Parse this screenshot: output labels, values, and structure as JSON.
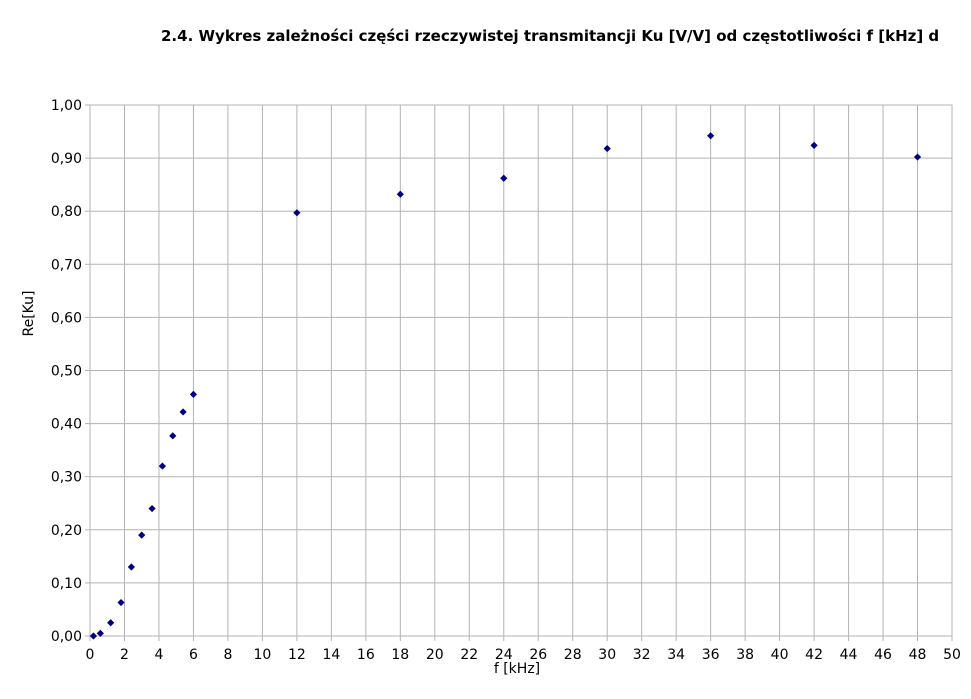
{
  "chart_data": {
    "type": "scatter",
    "title": "2.4. Wykres zależności części rzeczywistej transmitancji Ku [V/V] od częstotliwości f [kHz] d",
    "xlabel": "f [kHz]",
    "ylabel": "Re[Ku]",
    "xlim": [
      0,
      50
    ],
    "ylim": [
      0,
      1
    ],
    "x_ticks": [
      "0",
      "2",
      "4",
      "6",
      "8",
      "10",
      "12",
      "14",
      "16",
      "18",
      "20",
      "22",
      "24",
      "26",
      "28",
      "30",
      "32",
      "34",
      "36",
      "38",
      "40",
      "42",
      "44",
      "46",
      "48",
      "50"
    ],
    "y_ticks": [
      "0,00",
      "0,10",
      "0,20",
      "0,30",
      "0,40",
      "0,50",
      "0,60",
      "0,70",
      "0,80",
      "0,90",
      "1,00"
    ],
    "grid": true,
    "marker": "diamond",
    "marker_color": "#000080",
    "points": [
      {
        "x": 0.2,
        "y": 0.0
      },
      {
        "x": 0.6,
        "y": 0.005
      },
      {
        "x": 1.2,
        "y": 0.025
      },
      {
        "x": 1.8,
        "y": 0.063
      },
      {
        "x": 2.4,
        "y": 0.13
      },
      {
        "x": 3.0,
        "y": 0.19
      },
      {
        "x": 3.6,
        "y": 0.24
      },
      {
        "x": 4.2,
        "y": 0.32
      },
      {
        "x": 4.8,
        "y": 0.377
      },
      {
        "x": 5.4,
        "y": 0.422
      },
      {
        "x": 6.0,
        "y": 0.455
      },
      {
        "x": 12,
        "y": 0.797
      },
      {
        "x": 18,
        "y": 0.832
      },
      {
        "x": 24,
        "y": 0.862
      },
      {
        "x": 30,
        "y": 0.918
      },
      {
        "x": 36,
        "y": 0.942
      },
      {
        "x": 42,
        "y": 0.924
      },
      {
        "x": 48,
        "y": 0.902
      }
    ]
  }
}
